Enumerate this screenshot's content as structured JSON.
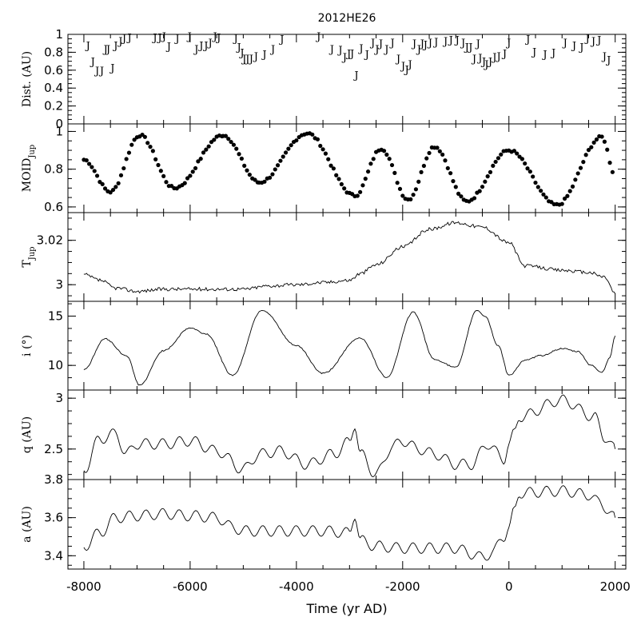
{
  "chart_data": {
    "type": "multi-panel",
    "title": "2012HE26",
    "xlabel": "Time (yr AD)",
    "xlim": [
      -8300,
      2200
    ],
    "x_ticks": [
      -8000,
      -6000,
      -4000,
      -2000,
      0,
      2000
    ],
    "x_tick_labels": [
      "-8000",
      "-6000",
      "-4000",
      "-2000",
      "0",
      "2000"
    ],
    "panels": [
      {
        "key": "dist",
        "type": "scatter",
        "ylabel": "Dist. (AU)",
        "marker": "J",
        "ylim": [
          0,
          1
        ],
        "y_ticks": [
          0,
          0.2,
          0.4,
          0.6,
          0.8,
          1
        ],
        "y_tick_labels": [
          "0",
          "0.2",
          "0.4",
          "0.6",
          "0.8",
          "1"
        ],
        "x": [
          -7920,
          -7830,
          -7750,
          -7660,
          -7590,
          -7540,
          -7460,
          -7400,
          -7310,
          -7240,
          -7140,
          -6660,
          -6570,
          -6490,
          -6400,
          -6240,
          -6010,
          -5880,
          -5790,
          -5700,
          -5620,
          -5530,
          -5460,
          -5140,
          -5080,
          -5020,
          -4980,
          -4920,
          -4850,
          -4760,
          -4600,
          -4440,
          -4270,
          -3580,
          -3330,
          -3170,
          -3090,
          -3010,
          -2950,
          -2870,
          -2780,
          -2670,
          -2560,
          -2480,
          -2410,
          -2300,
          -2190,
          -2080,
          -1990,
          -1920,
          -1860,
          -1780,
          -1690,
          -1630,
          -1570,
          -1480,
          -1370,
          -1190,
          -1090,
          -970,
          -860,
          -790,
          -720,
          -650,
          -580,
          -540,
          -470,
          -420,
          -350,
          -270,
          -190,
          -80,
          0,
          360,
          480,
          680,
          840,
          1060,
          1230,
          1370,
          1480,
          1590,
          1700,
          1800,
          1880
        ],
        "y": [
          0.88,
          0.7,
          0.6,
          0.6,
          0.84,
          0.84,
          0.63,
          0.88,
          0.93,
          0.96,
          0.97,
          0.97,
          0.97,
          0.98,
          0.87,
          0.96,
          0.98,
          0.84,
          0.88,
          0.88,
          0.91,
          0.98,
          0.97,
          0.96,
          0.86,
          0.8,
          0.73,
          0.73,
          0.73,
          0.76,
          0.78,
          0.84,
          0.95,
          0.98,
          0.84,
          0.83,
          0.75,
          0.79,
          0.79,
          0.55,
          0.85,
          0.78,
          0.91,
          0.84,
          0.9,
          0.84,
          0.91,
          0.73,
          0.65,
          0.61,
          0.67,
          0.9,
          0.84,
          0.9,
          0.89,
          0.91,
          0.92,
          0.93,
          0.94,
          0.94,
          0.91,
          0.86,
          0.86,
          0.73,
          0.9,
          0.74,
          0.7,
          0.67,
          0.7,
          0.75,
          0.76,
          0.79,
          0.91,
          0.95,
          0.81,
          0.78,
          0.8,
          0.91,
          0.88,
          0.86,
          0.96,
          0.93,
          0.94,
          0.76,
          0.72
        ]
      },
      {
        "key": "moid",
        "type": "scatter",
        "ylabel": "MOID",
        "ylabel_sub": "Jup",
        "ylim": [
          0.57,
          1.04
        ],
        "y_ticks": [
          0.6,
          0.8,
          1
        ],
        "y_tick_labels": [
          "0.6",
          "0.8",
          "1"
        ],
        "series_model": "piecewise cosine between peaks and troughs, sampled every 50 yr",
        "extrema": [
          {
            "x": -8000,
            "y": 0.85
          },
          {
            "x": -7500,
            "y": 0.68
          },
          {
            "x": -6950,
            "y": 0.98
          },
          {
            "x": -6300,
            "y": 0.7
          },
          {
            "x": -5380,
            "y": 0.98
          },
          {
            "x": -4700,
            "y": 0.73
          },
          {
            "x": -3800,
            "y": 0.99
          },
          {
            "x": -2900,
            "y": 0.66
          },
          {
            "x": -2400,
            "y": 0.91
          },
          {
            "x": -1900,
            "y": 0.64
          },
          {
            "x": -1400,
            "y": 0.92
          },
          {
            "x": -800,
            "y": 0.63
          },
          {
            "x": 0,
            "y": 0.9
          },
          {
            "x": 900,
            "y": 0.61
          },
          {
            "x": 1750,
            "y": 0.97
          },
          {
            "x": 2000,
            "y": 0.77
          }
        ]
      },
      {
        "key": "tjup",
        "type": "line",
        "ylabel": "T",
        "ylabel_sub": "Jup",
        "ylim": [
          2.9925,
          3.0325
        ],
        "y_ticks": [
          3.0,
          3.02
        ],
        "y_tick_labels": [
          "3",
          "3.02"
        ],
        "x": [
          -8000,
          -7700,
          -7400,
          -7000,
          -6500,
          -6000,
          -5500,
          -5000,
          -4500,
          -4000,
          -3500,
          -3000,
          -2800,
          -2500,
          -2000,
          -1500,
          -1000,
          -500,
          0,
          300,
          1000,
          1500,
          1800,
          2000
        ],
        "y": [
          3.0045,
          3.002,
          2.9985,
          2.997,
          2.998,
          2.998,
          2.998,
          2.998,
          2.9995,
          3.0,
          3.001,
          3.002,
          3.005,
          3.009,
          3.017,
          3.025,
          3.028,
          3.026,
          3.019,
          3.0085,
          3.0065,
          3.0055,
          3.0035,
          2.996
        ]
      },
      {
        "key": "i",
        "type": "line",
        "ylabel": "i (°)",
        "ylim": [
          7.5,
          16.5
        ],
        "y_ticks": [
          10,
          15
        ],
        "y_tick_labels": [
          "10",
          "15"
        ],
        "x": [
          -8000,
          -7600,
          -7200,
          -6950,
          -6500,
          -6000,
          -5700,
          -5200,
          -4650,
          -4000,
          -3500,
          -2800,
          -2300,
          -1800,
          -1400,
          -1000,
          -600,
          -450,
          -200,
          0,
          300,
          600,
          1000,
          1300,
          1550,
          1750,
          1900,
          2000
        ],
        "y": [
          9.6,
          12.7,
          11.0,
          8.0,
          11.5,
          13.8,
          13.2,
          9.0,
          15.6,
          12.0,
          9.2,
          12.8,
          8.8,
          15.4,
          10.6,
          9.8,
          15.6,
          15.0,
          12.0,
          9.0,
          10.5,
          11.0,
          11.7,
          11.4,
          10.0,
          9.3,
          10.8,
          13.0
        ]
      },
      {
        "key": "q",
        "type": "line",
        "ylabel": "q (AU)",
        "ylim": [
          2.2,
          3.08
        ],
        "y_ticks": [
          2.5,
          3
        ],
        "y_tick_labels": [
          "2.5",
          "3"
        ],
        "x": [
          -8000,
          -7700,
          -7400,
          -7200,
          -7000,
          -6500,
          -6000,
          -5500,
          -5000,
          -4700,
          -4300,
          -3800,
          -3300,
          -3000,
          -2900,
          -2800,
          -2500,
          -2200,
          -2000,
          -1700,
          -1400,
          -1000,
          -700,
          -400,
          -100,
          0,
          100,
          200,
          1000,
          1600,
          1800,
          2000
        ],
        "y": [
          2.3,
          2.6,
          2.65,
          2.45,
          2.55,
          2.55,
          2.58,
          2.48,
          2.3,
          2.45,
          2.48,
          2.35,
          2.45,
          2.57,
          2.75,
          2.45,
          2.25,
          2.52,
          2.58,
          2.5,
          2.45,
          2.35,
          2.35,
          2.55,
          2.4,
          2.55,
          2.65,
          2.82,
          2.98,
          2.82,
          2.62,
          2.5
        ]
      },
      {
        "key": "a",
        "type": "line",
        "ylabel": "a (AU)",
        "ylim": [
          3.33,
          3.8
        ],
        "y_ticks": [
          3.4,
          3.6,
          3.8
        ],
        "y_tick_labels": [
          "3.4",
          "3.6",
          "3.8"
        ],
        "x": [
          -8000,
          -7700,
          -7400,
          -7000,
          -6500,
          -6000,
          -5500,
          -5200,
          -5000,
          -4500,
          -4000,
          -3500,
          -3000,
          -2900,
          -2800,
          -2500,
          -2000,
          -1500,
          -1000,
          -700,
          -500,
          -300,
          -100,
          0,
          100,
          200,
          1000,
          1500,
          1700,
          2000
        ],
        "y": [
          3.45,
          3.52,
          3.6,
          3.61,
          3.62,
          3.61,
          3.6,
          3.55,
          3.53,
          3.53,
          3.53,
          3.53,
          3.52,
          3.62,
          3.48,
          3.45,
          3.44,
          3.44,
          3.44,
          3.41,
          3.39,
          3.42,
          3.5,
          3.55,
          3.63,
          3.73,
          3.74,
          3.72,
          3.68,
          3.6
        ]
      }
    ]
  }
}
